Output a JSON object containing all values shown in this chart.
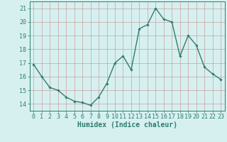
{
  "x": [
    0,
    1,
    2,
    3,
    4,
    5,
    6,
    7,
    8,
    9,
    10,
    11,
    12,
    13,
    14,
    15,
    16,
    17,
    18,
    19,
    20,
    21,
    22,
    23
  ],
  "y": [
    16.9,
    16.0,
    15.2,
    15.0,
    14.5,
    14.2,
    14.1,
    13.9,
    14.5,
    15.5,
    17.0,
    17.5,
    16.5,
    19.5,
    19.8,
    21.0,
    20.2,
    20.0,
    17.5,
    19.0,
    18.3,
    16.7,
    16.2,
    15.8
  ],
  "line_color": "#2e7d6e",
  "marker": "D",
  "marker_size": 1.8,
  "line_width": 1.0,
  "xlabel": "Humidex (Indice chaleur)",
  "xlabel_fontsize": 7,
  "bg_color": "#d6f0f0",
  "grid_color": "#c8a0a0",
  "axes_color": "#2e7d6e",
  "ylim": [
    13.5,
    21.5
  ],
  "xlim": [
    -0.5,
    23.5
  ],
  "yticks": [
    14,
    15,
    16,
    17,
    18,
    19,
    20,
    21
  ],
  "xticks": [
    0,
    1,
    2,
    3,
    4,
    5,
    6,
    7,
    8,
    9,
    10,
    11,
    12,
    13,
    14,
    15,
    16,
    17,
    18,
    19,
    20,
    21,
    22,
    23
  ],
  "tick_fontsize": 6,
  "ytick_fontsize": 6
}
